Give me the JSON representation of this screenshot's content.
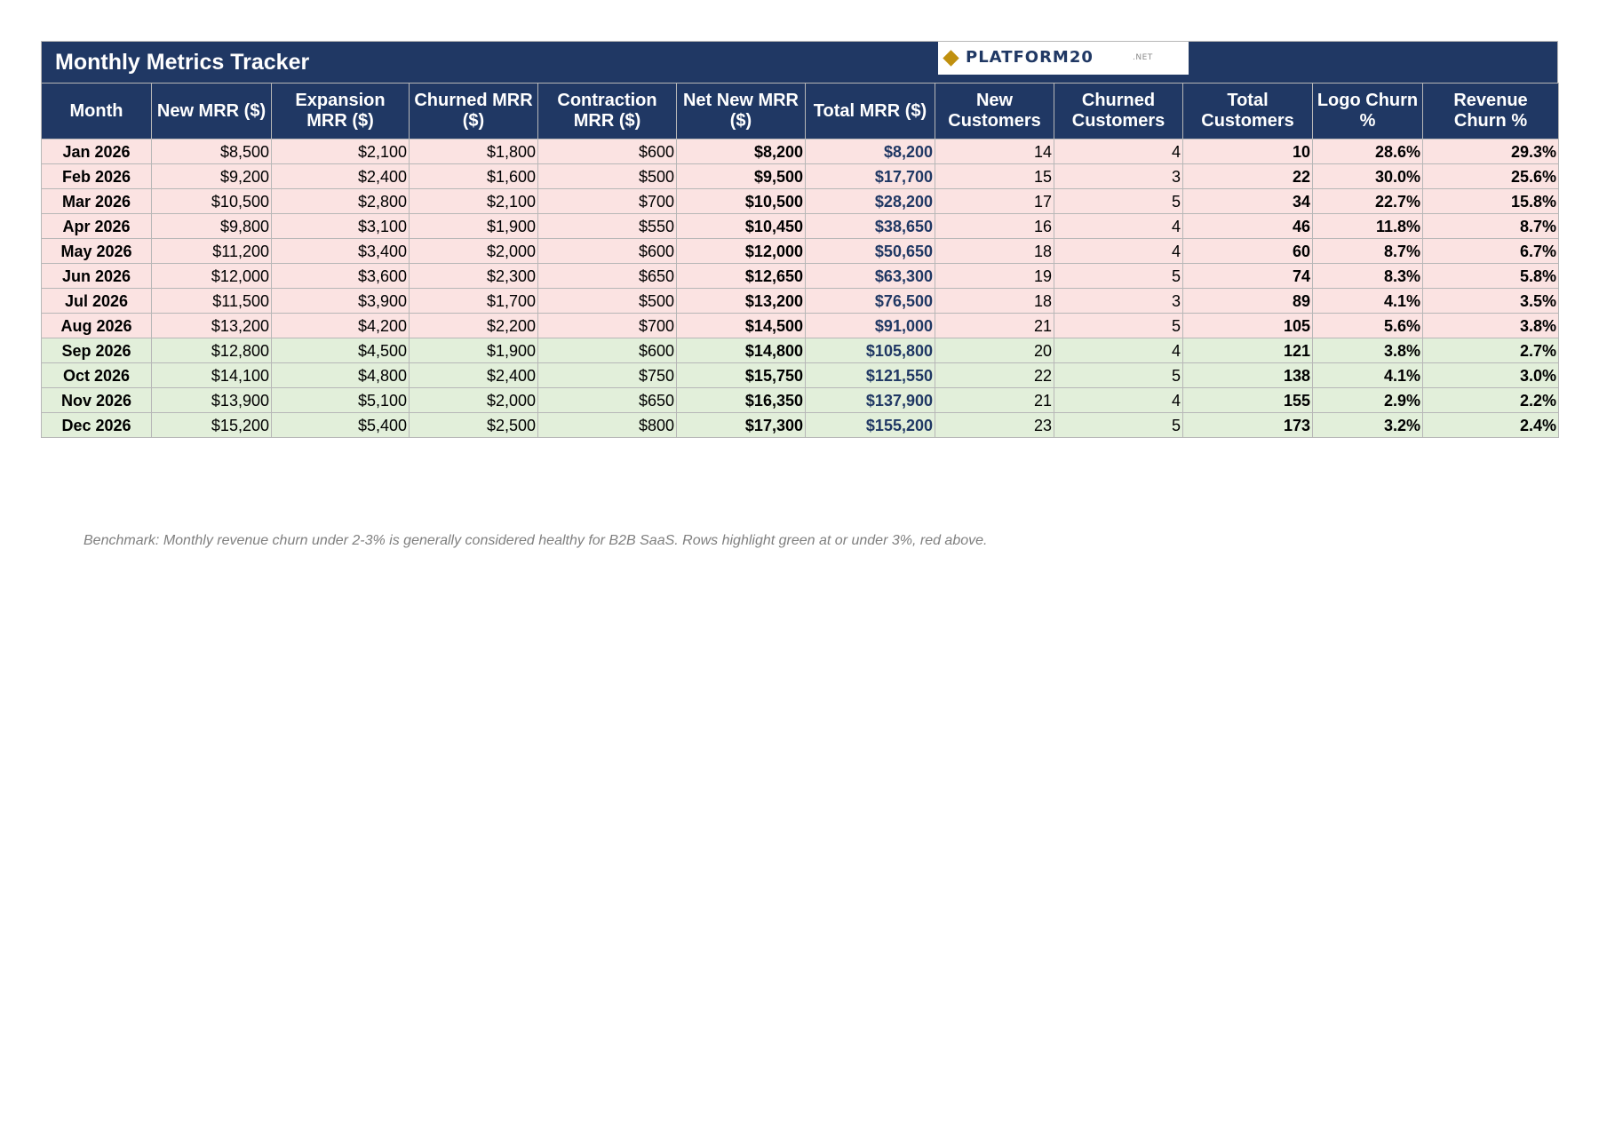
{
  "title": "Monthly Metrics Tracker",
  "logo": {
    "word": "PLATFORM20",
    "suffix": ".NET",
    "accent_color": "#c0900f"
  },
  "colors": {
    "header_bg": "#203864",
    "row_red": "#fbe3e2",
    "row_green": "#e2efda",
    "total_mrr_text": "#203864"
  },
  "table": {
    "columns": [
      "Month",
      "New MRR ($)",
      "Expansion MRR ($)",
      "Churned MRR ($)",
      "Contraction MRR ($)",
      "Net New MRR ($)",
      "Total MRR ($)",
      "New Customers",
      "Churned Customers",
      "Total Customers",
      "Logo Churn %",
      "Revenue Churn %"
    ],
    "rows": [
      {
        "status": "red",
        "cells": [
          "Jan 2026",
          "$8,500",
          "$2,100",
          "$1,800",
          "$600",
          "$8,200",
          "$8,200",
          "14",
          "4",
          "10",
          "28.6%",
          "29.3%"
        ]
      },
      {
        "status": "red",
        "cells": [
          "Feb 2026",
          "$9,200",
          "$2,400",
          "$1,600",
          "$500",
          "$9,500",
          "$17,700",
          "15",
          "3",
          "22",
          "30.0%",
          "25.6%"
        ]
      },
      {
        "status": "red",
        "cells": [
          "Mar 2026",
          "$10,500",
          "$2,800",
          "$2,100",
          "$700",
          "$10,500",
          "$28,200",
          "17",
          "5",
          "34",
          "22.7%",
          "15.8%"
        ]
      },
      {
        "status": "red",
        "cells": [
          "Apr 2026",
          "$9,800",
          "$3,100",
          "$1,900",
          "$550",
          "$10,450",
          "$38,650",
          "16",
          "4",
          "46",
          "11.8%",
          "8.7%"
        ]
      },
      {
        "status": "red",
        "cells": [
          "May 2026",
          "$11,200",
          "$3,400",
          "$2,000",
          "$600",
          "$12,000",
          "$50,650",
          "18",
          "4",
          "60",
          "8.7%",
          "6.7%"
        ]
      },
      {
        "status": "red",
        "cells": [
          "Jun 2026",
          "$12,000",
          "$3,600",
          "$2,300",
          "$650",
          "$12,650",
          "$63,300",
          "19",
          "5",
          "74",
          "8.3%",
          "5.8%"
        ]
      },
      {
        "status": "red",
        "cells": [
          "Jul 2026",
          "$11,500",
          "$3,900",
          "$1,700",
          "$500",
          "$13,200",
          "$76,500",
          "18",
          "3",
          "89",
          "4.1%",
          "3.5%"
        ]
      },
      {
        "status": "red",
        "cells": [
          "Aug 2026",
          "$13,200",
          "$4,200",
          "$2,200",
          "$700",
          "$14,500",
          "$91,000",
          "21",
          "5",
          "105",
          "5.6%",
          "3.8%"
        ]
      },
      {
        "status": "green",
        "cells": [
          "Sep 2026",
          "$12,800",
          "$4,500",
          "$1,900",
          "$600",
          "$14,800",
          "$105,800",
          "20",
          "4",
          "121",
          "3.8%",
          "2.7%"
        ]
      },
      {
        "status": "green",
        "cells": [
          "Oct 2026",
          "$14,100",
          "$4,800",
          "$2,400",
          "$750",
          "$15,750",
          "$121,550",
          "22",
          "5",
          "138",
          "4.1%",
          "3.0%"
        ]
      },
      {
        "status": "green",
        "cells": [
          "Nov 2026",
          "$13,900",
          "$5,100",
          "$2,000",
          "$650",
          "$16,350",
          "$137,900",
          "21",
          "4",
          "155",
          "2.9%",
          "2.2%"
        ]
      },
      {
        "status": "green",
        "cells": [
          "Dec 2026",
          "$15,200",
          "$5,400",
          "$2,500",
          "$800",
          "$17,300",
          "$155,200",
          "23",
          "5",
          "173",
          "3.2%",
          "2.4%"
        ]
      }
    ]
  },
  "note": "Benchmark: Monthly revenue churn under 2-3% is generally considered healthy for B2B SaaS. Rows highlight green at or under 3%, red above."
}
